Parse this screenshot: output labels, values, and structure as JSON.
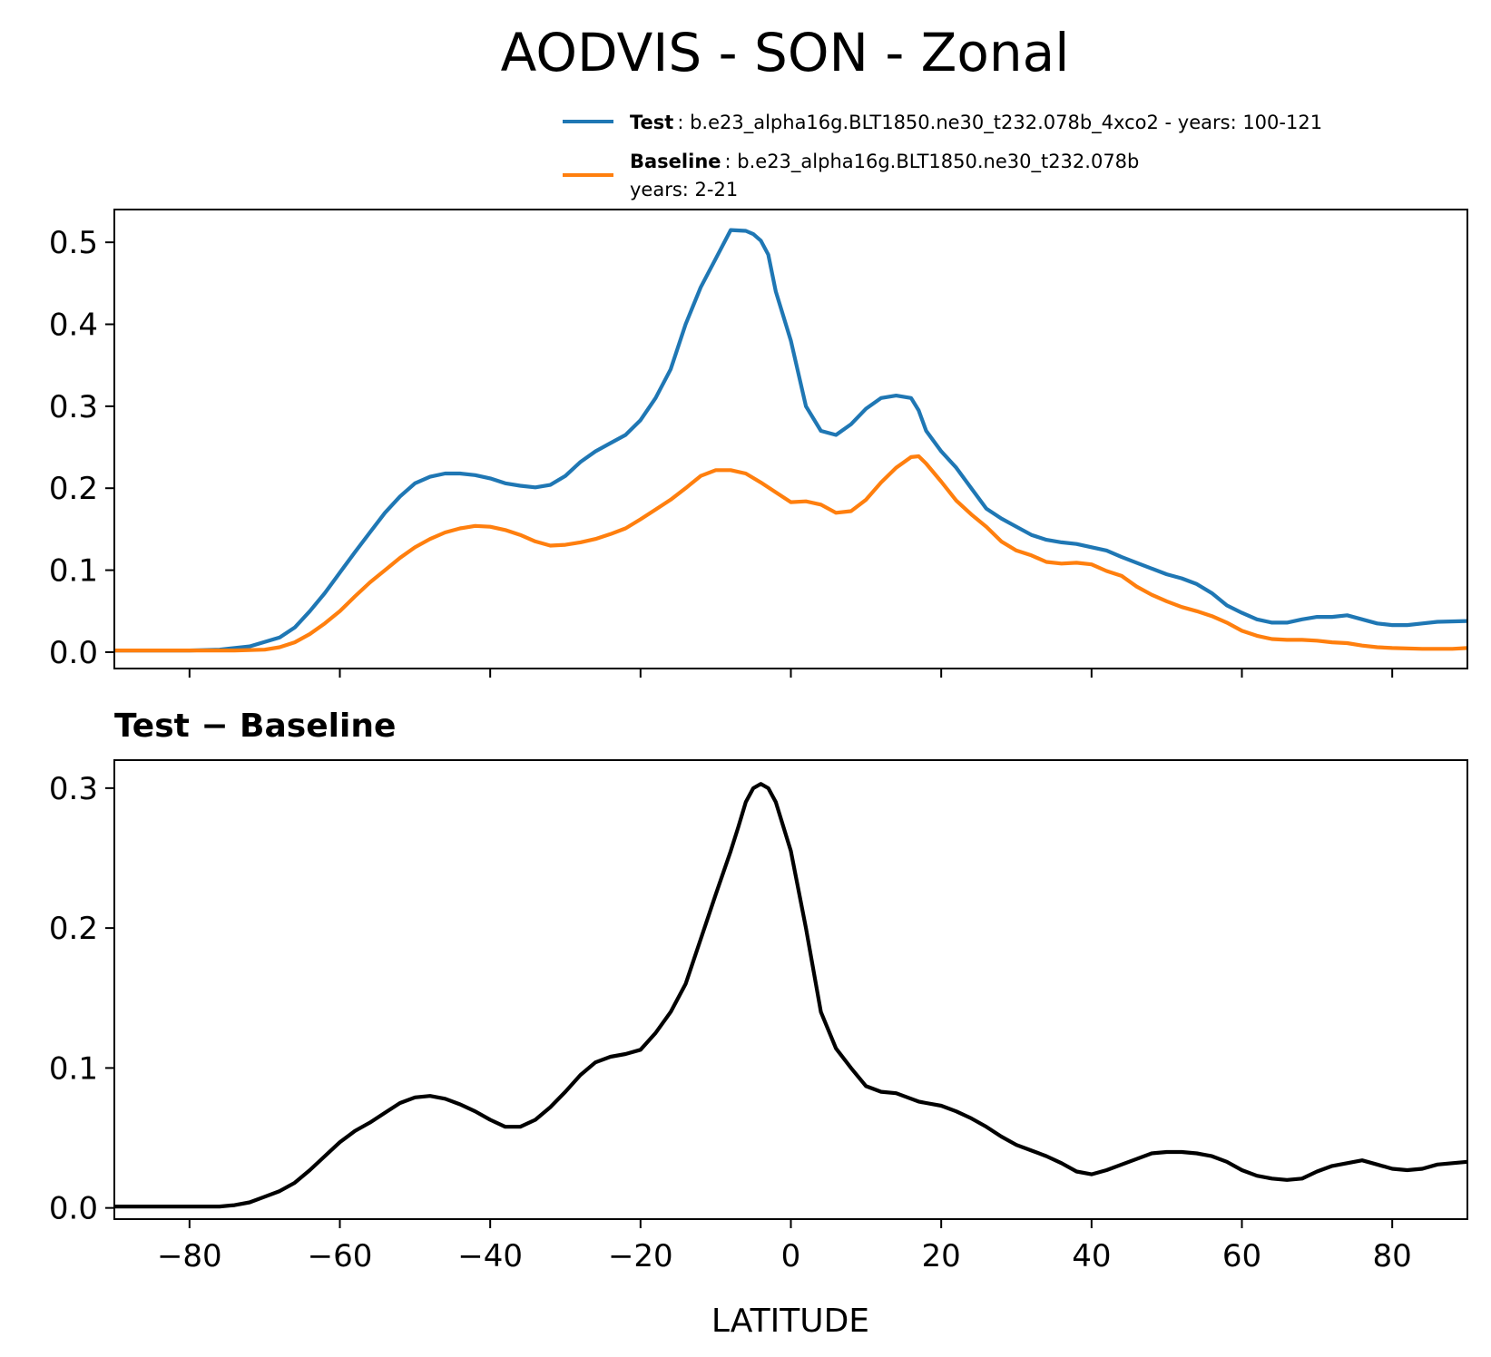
{
  "chart_data": [
    {
      "type": "line",
      "title": "AODVIS - SON - Zonal",
      "xlim": [
        -90,
        90
      ],
      "ylim": [
        -0.02,
        0.54
      ],
      "xticks": [
        -80,
        -60,
        -40,
        -20,
        0,
        20,
        40,
        60,
        80
      ],
      "yticks": [
        0.0,
        0.1,
        0.2,
        0.3,
        0.4,
        0.5
      ],
      "ytick_labels": [
        "0.0",
        "0.1",
        "0.2",
        "0.3",
        "0.4",
        "0.5"
      ],
      "x_tick_labels_shown": false,
      "legend": {
        "placement": "above-right",
        "entries": [
          {
            "label_bold": "Test",
            "label_text": ": b.e23_alpha16g.BLT1850.ne30_t232.078b_4xco2 - years: 100-121",
            "color": "#1f77b4"
          },
          {
            "label_bold": "Baseline",
            "label_text": ": b.e23_alpha16g.BLT1850.ne30_t232.078b",
            "label_text2": "years: 2-21",
            "color": "#ff7f0e"
          }
        ]
      },
      "series": [
        {
          "name": "Test",
          "color": "#1f77b4",
          "x": [
            -90,
            -80,
            -76,
            -72,
            -68,
            -66,
            -64,
            -62,
            -60,
            -58,
            -56,
            -54,
            -52,
            -50,
            -48,
            -46,
            -44,
            -42,
            -40,
            -38,
            -36,
            -34,
            -32,
            -30,
            -28,
            -26,
            -24,
            -22,
            -20,
            -18,
            -16,
            -14,
            -12,
            -10,
            -8,
            -6,
            -5,
            -4,
            -3,
            -2,
            0,
            2,
            4,
            6,
            8,
            10,
            12,
            14,
            16,
            17,
            18,
            20,
            22,
            24,
            26,
            28,
            30,
            32,
            34,
            36,
            38,
            40,
            42,
            44,
            46,
            48,
            50,
            52,
            54,
            56,
            58,
            60,
            62,
            64,
            66,
            68,
            70,
            72,
            74,
            76,
            78,
            80,
            82,
            84,
            86,
            90
          ],
          "y": [
            0.002,
            0.002,
            0.003,
            0.007,
            0.018,
            0.03,
            0.05,
            0.072,
            0.097,
            0.122,
            0.146,
            0.17,
            0.19,
            0.206,
            0.214,
            0.218,
            0.218,
            0.216,
            0.212,
            0.206,
            0.203,
            0.201,
            0.204,
            0.215,
            0.232,
            0.245,
            0.255,
            0.265,
            0.283,
            0.31,
            0.345,
            0.4,
            0.445,
            0.48,
            0.515,
            0.514,
            0.51,
            0.502,
            0.485,
            0.44,
            0.38,
            0.3,
            0.27,
            0.265,
            0.278,
            0.297,
            0.31,
            0.313,
            0.31,
            0.295,
            0.27,
            0.245,
            0.225,
            0.2,
            0.175,
            0.163,
            0.153,
            0.143,
            0.137,
            0.134,
            0.132,
            0.128,
            0.124,
            0.116,
            0.109,
            0.102,
            0.095,
            0.09,
            0.083,
            0.072,
            0.057,
            0.048,
            0.04,
            0.036,
            0.036,
            0.04,
            0.043,
            0.043,
            0.045,
            0.04,
            0.035,
            0.033,
            0.033,
            0.035,
            0.037,
            0.038
          ]
        },
        {
          "name": "Baseline",
          "color": "#ff7f0e",
          "x": [
            -90,
            -80,
            -74,
            -70,
            -68,
            -66,
            -64,
            -62,
            -60,
            -58,
            -56,
            -54,
            -52,
            -50,
            -48,
            -46,
            -44,
            -42,
            -40,
            -38,
            -36,
            -34,
            -32,
            -30,
            -28,
            -26,
            -24,
            -22,
            -20,
            -18,
            -16,
            -14,
            -12,
            -10,
            -8,
            -6,
            -4,
            -2,
            0,
            2,
            4,
            6,
            8,
            10,
            12,
            14,
            16,
            17,
            18,
            20,
            22,
            24,
            26,
            28,
            30,
            32,
            34,
            36,
            38,
            40,
            42,
            44,
            46,
            48,
            50,
            52,
            54,
            56,
            58,
            60,
            62,
            64,
            66,
            68,
            70,
            72,
            74,
            76,
            78,
            80,
            84,
            88,
            90
          ],
          "y": [
            0.002,
            0.002,
            0.002,
            0.003,
            0.006,
            0.012,
            0.022,
            0.035,
            0.05,
            0.068,
            0.085,
            0.1,
            0.115,
            0.128,
            0.138,
            0.146,
            0.151,
            0.154,
            0.153,
            0.149,
            0.143,
            0.135,
            0.13,
            0.131,
            0.134,
            0.138,
            0.144,
            0.151,
            0.162,
            0.174,
            0.186,
            0.2,
            0.215,
            0.222,
            0.222,
            0.218,
            0.207,
            0.195,
            0.183,
            0.184,
            0.18,
            0.17,
            0.172,
            0.186,
            0.207,
            0.225,
            0.238,
            0.239,
            0.23,
            0.208,
            0.185,
            0.168,
            0.153,
            0.135,
            0.124,
            0.118,
            0.11,
            0.108,
            0.109,
            0.107,
            0.099,
            0.093,
            0.08,
            0.07,
            0.062,
            0.055,
            0.05,
            0.044,
            0.036,
            0.026,
            0.02,
            0.016,
            0.015,
            0.015,
            0.014,
            0.012,
            0.011,
            0.008,
            0.006,
            0.005,
            0.004,
            0.004,
            0.005
          ]
        }
      ]
    },
    {
      "type": "line",
      "title": "Test − Baseline",
      "xlabel": "LATITUDE",
      "xlim": [
        -90,
        90
      ],
      "ylim": [
        -0.008,
        0.32
      ],
      "xticks": [
        -80,
        -60,
        -40,
        -20,
        0,
        20,
        40,
        60,
        80
      ],
      "xtick_labels": [
        "−80",
        "−60",
        "−40",
        "−20",
        "0",
        "20",
        "40",
        "60",
        "80"
      ],
      "yticks": [
        0.0,
        0.1,
        0.2,
        0.3
      ],
      "ytick_labels": [
        "0.0",
        "0.1",
        "0.2",
        "0.3"
      ],
      "series": [
        {
          "color": "#000000",
          "x": [
            -90,
            -80,
            -76,
            -74,
            -72,
            -70,
            -68,
            -66,
            -64,
            -62,
            -60,
            -58,
            -56,
            -54,
            -52,
            -50,
            -48,
            -46,
            -44,
            -42,
            -40,
            -38,
            -36,
            -34,
            -32,
            -30,
            -28,
            -26,
            -24,
            -22,
            -20,
            -18,
            -16,
            -14,
            -12,
            -10,
            -8,
            -7,
            -6,
            -5,
            -4,
            -3,
            -2,
            0,
            2,
            4,
            6,
            8,
            10,
            12,
            14,
            16,
            17,
            18,
            20,
            22,
            24,
            26,
            28,
            30,
            32,
            34,
            36,
            38,
            40,
            42,
            44,
            46,
            48,
            50,
            52,
            54,
            56,
            58,
            60,
            62,
            64,
            66,
            68,
            70,
            72,
            74,
            76,
            78,
            80,
            82,
            84,
            86,
            90
          ],
          "y": [
            0.001,
            0.001,
            0.001,
            0.002,
            0.004,
            0.008,
            0.012,
            0.018,
            0.027,
            0.037,
            0.047,
            0.055,
            0.061,
            0.068,
            0.075,
            0.079,
            0.08,
            0.078,
            0.074,
            0.069,
            0.063,
            0.058,
            0.058,
            0.063,
            0.072,
            0.083,
            0.095,
            0.104,
            0.108,
            0.11,
            0.113,
            0.125,
            0.14,
            0.16,
            0.192,
            0.224,
            0.255,
            0.272,
            0.29,
            0.3,
            0.303,
            0.3,
            0.29,
            0.255,
            0.2,
            0.14,
            0.114,
            0.1,
            0.087,
            0.083,
            0.082,
            0.078,
            0.076,
            0.075,
            0.073,
            0.069,
            0.064,
            0.058,
            0.051,
            0.045,
            0.041,
            0.037,
            0.032,
            0.026,
            0.024,
            0.027,
            0.031,
            0.035,
            0.039,
            0.04,
            0.04,
            0.039,
            0.037,
            0.033,
            0.027,
            0.023,
            0.021,
            0.02,
            0.021,
            0.026,
            0.03,
            0.032,
            0.034,
            0.031,
            0.028,
            0.027,
            0.028,
            0.031,
            0.033
          ]
        }
      ]
    }
  ]
}
